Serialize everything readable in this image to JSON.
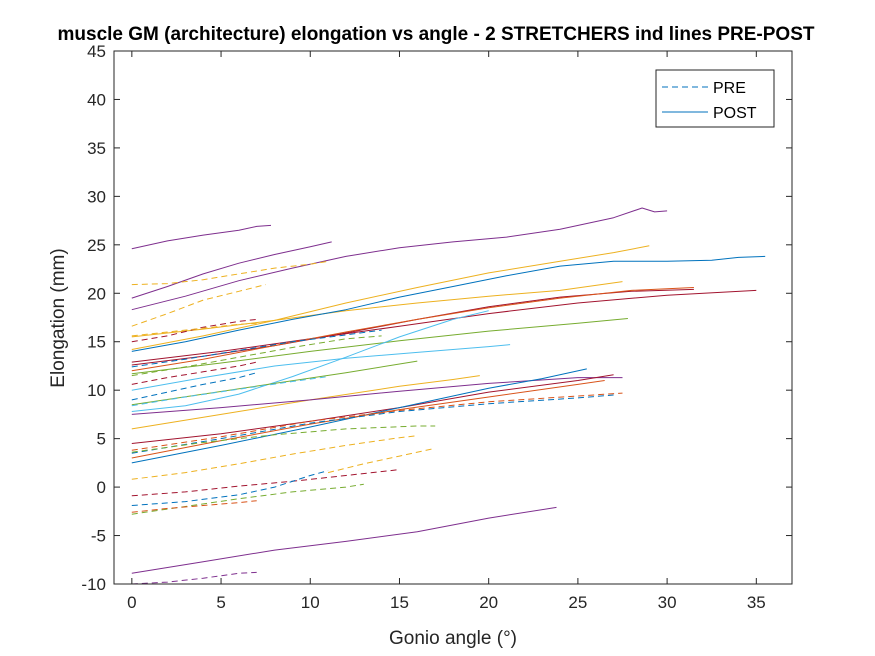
{
  "chart_data": {
    "type": "line",
    "title": "muscle GM (architecture) elongation vs angle - 2 STRETCHERS ind lines PRE-POST",
    "xlabel": "Gonio angle (°)",
    "ylabel": "Elongation (mm)",
    "xlim": [
      -1,
      37
    ],
    "ylim": [
      -10,
      45
    ],
    "xticks": [
      0,
      5,
      10,
      15,
      20,
      25,
      30,
      35
    ],
    "yticks": [
      -10,
      -5,
      0,
      5,
      10,
      15,
      20,
      25,
      30,
      35,
      40,
      45
    ],
    "grid": false,
    "legend": {
      "position": "top-right",
      "entries": [
        {
          "label": "PRE",
          "style": "dashed",
          "color": "#0072BD"
        },
        {
          "label": "POST",
          "style": "solid",
          "color": "#0072BD"
        }
      ]
    },
    "series": [
      {
        "style": "solid",
        "color": "#7E2F8E",
        "points": [
          [
            0,
            24.6
          ],
          [
            2,
            25.4
          ],
          [
            4,
            26.0
          ],
          [
            6,
            26.5
          ],
          [
            7,
            26.9
          ],
          [
            7.8,
            27.0
          ]
        ]
      },
      {
        "style": "solid",
        "color": "#7E2F8E",
        "points": [
          [
            0,
            19.5
          ],
          [
            2,
            20.7
          ],
          [
            4,
            22.0
          ],
          [
            6,
            23.1
          ],
          [
            8,
            24.0
          ],
          [
            10,
            24.8
          ],
          [
            11.2,
            25.3
          ]
        ]
      },
      {
        "style": "solid",
        "color": "#7E2F8E",
        "points": [
          [
            0,
            18.3
          ],
          [
            3,
            19.7
          ],
          [
            6,
            21.3
          ],
          [
            9,
            22.6
          ],
          [
            12,
            23.8
          ],
          [
            15,
            24.7
          ],
          [
            18,
            25.3
          ],
          [
            21,
            25.8
          ],
          [
            24,
            26.6
          ],
          [
            27,
            27.8
          ],
          [
            28.6,
            28.8
          ],
          [
            29.3,
            28.4
          ],
          [
            30,
            28.5
          ]
        ]
      },
      {
        "style": "solid",
        "color": "#EDB120",
        "points": [
          [
            0,
            15.5
          ],
          [
            4,
            16.3
          ],
          [
            8,
            17.2
          ],
          [
            12,
            18.2
          ],
          [
            16,
            19.0
          ],
          [
            20,
            19.7
          ],
          [
            24,
            20.3
          ],
          [
            27.5,
            21.2
          ]
        ]
      },
      {
        "style": "solid",
        "color": "#EDB120",
        "points": [
          [
            0,
            14.2
          ],
          [
            4,
            15.6
          ],
          [
            8,
            17.2
          ],
          [
            12,
            19.0
          ],
          [
            16,
            20.6
          ],
          [
            20,
            22.1
          ],
          [
            24,
            23.3
          ],
          [
            27,
            24.2
          ],
          [
            29,
            24.9
          ]
        ]
      },
      {
        "style": "solid",
        "color": "#0072BD",
        "points": [
          [
            0,
            14.0
          ],
          [
            3,
            15.0
          ],
          [
            6,
            16.2
          ],
          [
            9,
            17.3
          ],
          [
            12,
            18.3
          ],
          [
            15,
            19.6
          ],
          [
            18,
            20.7
          ],
          [
            21,
            21.8
          ],
          [
            24,
            22.8
          ],
          [
            27,
            23.3
          ],
          [
            30,
            23.3
          ],
          [
            32.5,
            23.4
          ],
          [
            34,
            23.7
          ],
          [
            35.5,
            23.8
          ]
        ]
      },
      {
        "style": "solid",
        "color": "#A2142F",
        "points": [
          [
            0,
            12.6
          ],
          [
            4,
            13.5
          ],
          [
            8,
            14.6
          ],
          [
            12,
            15.9
          ],
          [
            16,
            17.3
          ],
          [
            20,
            18.6
          ],
          [
            24,
            19.6
          ],
          [
            28,
            20.2
          ],
          [
            31.5,
            20.4
          ]
        ]
      },
      {
        "style": "solid",
        "color": "#A2142F",
        "points": [
          [
            0,
            12.9
          ],
          [
            5,
            14.0
          ],
          [
            10,
            15.3
          ],
          [
            15,
            16.6
          ],
          [
            20,
            17.9
          ],
          [
            25,
            19.0
          ],
          [
            30,
            19.8
          ],
          [
            35,
            20.3
          ]
        ]
      },
      {
        "style": "solid",
        "color": "#D95319",
        "points": [
          [
            0,
            12.0
          ],
          [
            4,
            13.2
          ],
          [
            8,
            14.6
          ],
          [
            12,
            16.0
          ],
          [
            16,
            17.3
          ],
          [
            20,
            18.5
          ],
          [
            24,
            19.5
          ],
          [
            28,
            20.3
          ],
          [
            31.5,
            20.6
          ]
        ]
      },
      {
        "style": "solid",
        "color": "#77AC30",
        "points": [
          [
            0,
            11.7
          ],
          [
            5,
            12.8
          ],
          [
            10,
            14.0
          ],
          [
            15,
            15.1
          ],
          [
            20,
            16.1
          ],
          [
            25,
            16.9
          ],
          [
            27.8,
            17.4
          ]
        ]
      },
      {
        "style": "solid",
        "color": "#4DBEEE",
        "points": [
          [
            0,
            10.0
          ],
          [
            4,
            11.3
          ],
          [
            8,
            12.5
          ],
          [
            12,
            13.3
          ],
          [
            16,
            13.9
          ],
          [
            20,
            14.5
          ],
          [
            21.2,
            14.7
          ]
        ]
      },
      {
        "style": "solid",
        "color": "#4DBEEE",
        "points": [
          [
            0,
            7.8
          ],
          [
            3,
            8.4
          ],
          [
            6,
            9.6
          ],
          [
            9,
            11.4
          ],
          [
            12,
            13.4
          ],
          [
            15,
            15.5
          ],
          [
            18,
            17.3
          ],
          [
            20,
            18.2
          ]
        ]
      },
      {
        "style": "solid",
        "color": "#77AC30",
        "points": [
          [
            0,
            8.5
          ],
          [
            4,
            9.6
          ],
          [
            8,
            10.7
          ],
          [
            12,
            11.8
          ],
          [
            16,
            13.0
          ]
        ]
      },
      {
        "style": "solid",
        "color": "#EDB120",
        "points": [
          [
            0,
            6.0
          ],
          [
            5,
            7.5
          ],
          [
            10,
            9.0
          ],
          [
            15,
            10.4
          ],
          [
            18,
            11.1
          ],
          [
            19.5,
            11.5
          ]
        ]
      },
      {
        "style": "solid",
        "color": "#7E2F8E",
        "points": [
          [
            0,
            7.5
          ],
          [
            5,
            8.2
          ],
          [
            10,
            9.0
          ],
          [
            15,
            9.9
          ],
          [
            20,
            10.7
          ],
          [
            25,
            11.3
          ],
          [
            27.5,
            11.3
          ]
        ]
      },
      {
        "style": "solid",
        "color": "#A2142F",
        "points": [
          [
            0,
            4.5
          ],
          [
            5,
            5.5
          ],
          [
            10,
            6.8
          ],
          [
            15,
            8.2
          ],
          [
            20,
            9.8
          ],
          [
            25,
            11.0
          ],
          [
            27,
            11.6
          ]
        ]
      },
      {
        "style": "solid",
        "color": "#0072BD",
        "points": [
          [
            0,
            2.5
          ],
          [
            5,
            4.3
          ],
          [
            10,
            6.2
          ],
          [
            15,
            8.2
          ],
          [
            20,
            10.2
          ],
          [
            23,
            11.2
          ],
          [
            25.5,
            12.2
          ]
        ]
      },
      {
        "style": "solid",
        "color": "#D95319",
        "points": [
          [
            0,
            3.0
          ],
          [
            5,
            4.8
          ],
          [
            10,
            6.5
          ],
          [
            15,
            8.0
          ],
          [
            20,
            9.3
          ],
          [
            25,
            10.6
          ],
          [
            26.5,
            11.0
          ]
        ]
      },
      {
        "style": "solid",
        "color": "#7E2F8E",
        "points": [
          [
            0,
            -8.9
          ],
          [
            4,
            -7.7
          ],
          [
            8,
            -6.5
          ],
          [
            12,
            -5.6
          ],
          [
            16,
            -4.6
          ],
          [
            20,
            -3.2
          ],
          [
            23.8,
            -2.1
          ]
        ]
      },
      {
        "style": "dashed",
        "color": "#EDB120",
        "points": [
          [
            0,
            20.9
          ],
          [
            2,
            21.0
          ],
          [
            4,
            21.4
          ],
          [
            6,
            22.0
          ],
          [
            8,
            22.6
          ],
          [
            10,
            23.0
          ],
          [
            11,
            23.3
          ]
        ]
      },
      {
        "style": "dashed",
        "color": "#EDB120",
        "points": [
          [
            0,
            16.6
          ],
          [
            2,
            17.9
          ],
          [
            4,
            19.3
          ],
          [
            6,
            20.2
          ],
          [
            7.5,
            20.9
          ]
        ]
      },
      {
        "style": "dashed",
        "color": "#A2142F",
        "points": [
          [
            0,
            15.0
          ],
          [
            2,
            15.6
          ],
          [
            4,
            16.5
          ],
          [
            6,
            17.1
          ],
          [
            7,
            17.3
          ]
        ]
      },
      {
        "style": "dashed",
        "color": "#EDB120",
        "points": [
          [
            0,
            15.6
          ],
          [
            2,
            16.0
          ],
          [
            4,
            16.4
          ],
          [
            6,
            16.8
          ],
          [
            7,
            16.9
          ]
        ]
      },
      {
        "style": "dashed",
        "color": "#0072BD",
        "points": [
          [
            0,
            12.4
          ],
          [
            3,
            13.2
          ],
          [
            6,
            14.1
          ],
          [
            9,
            15.0
          ],
          [
            12,
            15.7
          ],
          [
            14,
            16.2
          ]
        ]
      },
      {
        "style": "dashed",
        "color": "#77AC30",
        "points": [
          [
            0,
            11.5
          ],
          [
            3,
            12.4
          ],
          [
            6,
            13.4
          ],
          [
            9,
            14.4
          ],
          [
            12,
            15.3
          ],
          [
            14,
            15.6
          ]
        ]
      },
      {
        "style": "dashed",
        "color": "#A2142F",
        "points": [
          [
            0,
            10.6
          ],
          [
            2,
            11.3
          ],
          [
            4,
            11.9
          ],
          [
            6,
            12.5
          ],
          [
            7,
            12.9
          ]
        ]
      },
      {
        "style": "dashed",
        "color": "#0072BD",
        "points": [
          [
            0,
            9.0
          ],
          [
            2,
            9.8
          ],
          [
            4,
            10.6
          ],
          [
            6,
            11.3
          ],
          [
            7,
            11.8
          ]
        ]
      },
      {
        "style": "dashed",
        "color": "#4DBEEE",
        "points": [
          [
            0,
            8.4
          ],
          [
            3,
            9.3
          ],
          [
            6,
            10.1
          ],
          [
            9,
            10.9
          ],
          [
            11,
            11.4
          ]
        ]
      },
      {
        "style": "dashed",
        "color": "#0072BD",
        "points": [
          [
            0,
            3.5
          ],
          [
            5,
            5.0
          ],
          [
            10,
            6.6
          ],
          [
            15,
            7.8
          ],
          [
            20,
            8.6
          ],
          [
            25,
            9.2
          ],
          [
            27,
            9.5
          ]
        ]
      },
      {
        "style": "dashed",
        "color": "#D95319",
        "points": [
          [
            0,
            3.8
          ],
          [
            5,
            5.2
          ],
          [
            10,
            6.8
          ],
          [
            15,
            7.9
          ],
          [
            20,
            8.8
          ],
          [
            25,
            9.4
          ],
          [
            27.5,
            9.7
          ]
        ]
      },
      {
        "style": "dashed",
        "color": "#77AC30",
        "points": [
          [
            0,
            3.6
          ],
          [
            4,
            4.6
          ],
          [
            8,
            5.4
          ],
          [
            12,
            6.0
          ],
          [
            16,
            6.3
          ],
          [
            17,
            6.3
          ]
        ]
      },
      {
        "style": "dashed",
        "color": "#EDB120",
        "points": [
          [
            0,
            0.8
          ],
          [
            3,
            1.5
          ],
          [
            6,
            2.4
          ],
          [
            9,
            3.4
          ],
          [
            12,
            4.3
          ],
          [
            15,
            5.1
          ],
          [
            16,
            5.3
          ]
        ]
      },
      {
        "style": "dashed",
        "color": "#A2142F",
        "points": [
          [
            0,
            -0.9
          ],
          [
            3,
            -0.5
          ],
          [
            6,
            0.1
          ],
          [
            9,
            0.6
          ],
          [
            12,
            1.2
          ],
          [
            15,
            1.8
          ]
        ]
      },
      {
        "style": "dashed",
        "color": "#EDB120",
        "points": [
          [
            11,
            1.5
          ],
          [
            13,
            2.4
          ],
          [
            15,
            3.2
          ],
          [
            17,
            4.0
          ]
        ]
      },
      {
        "style": "dashed",
        "color": "#0072BD",
        "points": [
          [
            0,
            -1.9
          ],
          [
            3,
            -1.5
          ],
          [
            6,
            -0.8
          ],
          [
            8,
            0.0
          ],
          [
            10,
            1.2
          ],
          [
            11,
            1.7
          ]
        ]
      },
      {
        "style": "dashed",
        "color": "#77AC30",
        "points": [
          [
            0,
            -2.8
          ],
          [
            3,
            -2.0
          ],
          [
            6,
            -1.2
          ],
          [
            9,
            -0.5
          ],
          [
            12,
            0.0
          ],
          [
            13,
            0.3
          ]
        ]
      },
      {
        "style": "dashed",
        "color": "#D95319",
        "points": [
          [
            0,
            -2.6
          ],
          [
            2,
            -2.2
          ],
          [
            4,
            -1.9
          ],
          [
            6,
            -1.6
          ],
          [
            7,
            -1.4
          ]
        ]
      },
      {
        "style": "dashed",
        "color": "#7E2F8E",
        "points": [
          [
            0,
            -10.0
          ],
          [
            2,
            -9.8
          ],
          [
            4,
            -9.4
          ],
          [
            6,
            -8.9
          ],
          [
            7,
            -8.8
          ]
        ]
      }
    ]
  }
}
